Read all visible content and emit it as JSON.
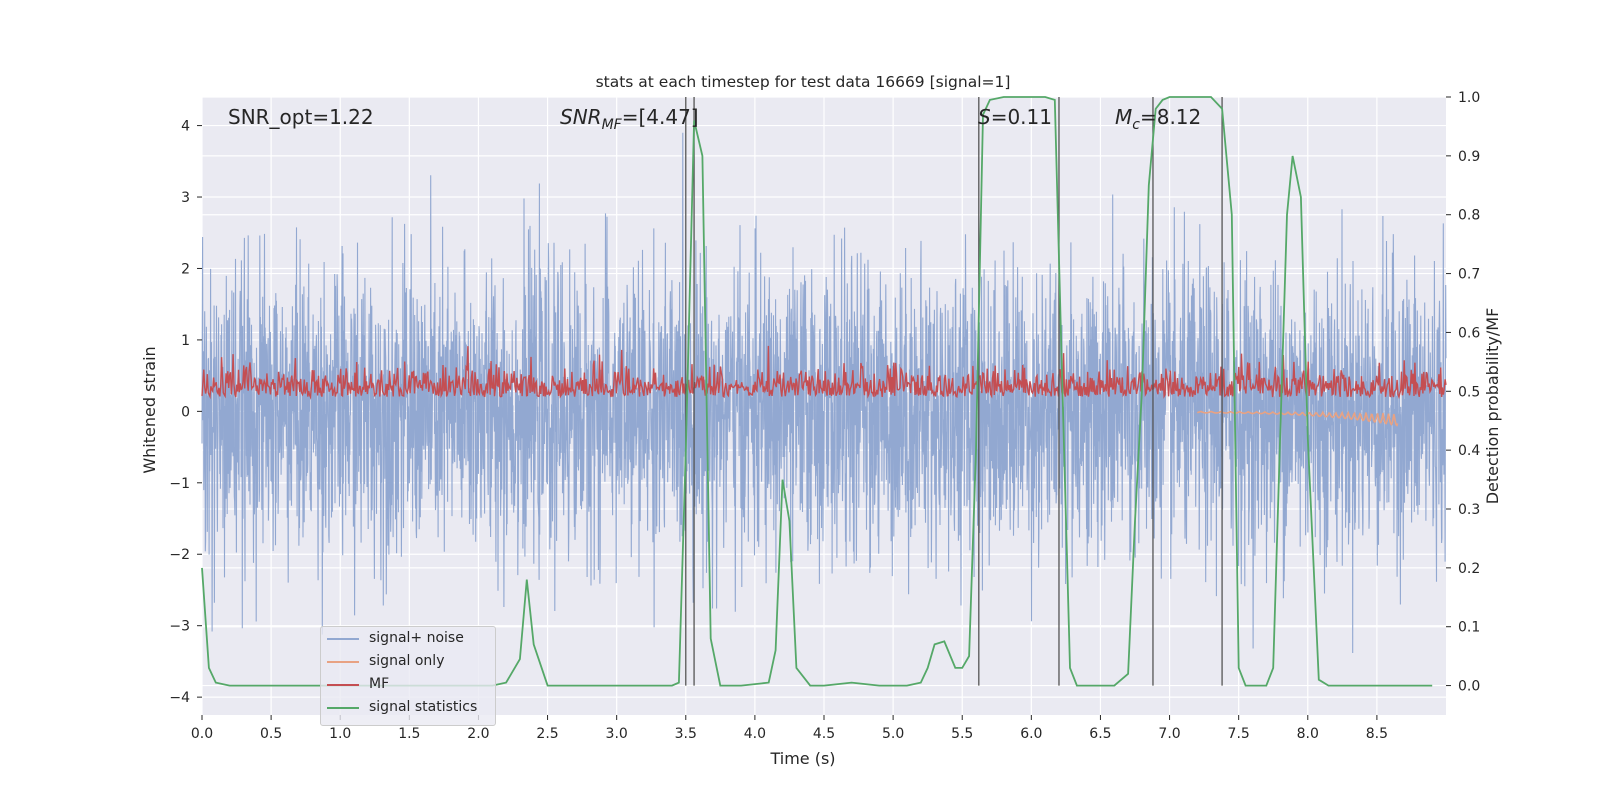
{
  "chart_data": {
    "type": "line",
    "title": "stats at each timestep for test data 16669 [signal=1]",
    "xlabel": "Time (s)",
    "ylabel_left": "Whitened strain",
    "ylabel_right": "Detection probability/MF",
    "xlim": [
      0.0,
      9.0
    ],
    "ylim_left": [
      -4.25,
      4.4
    ],
    "ylim_right": [
      -0.05,
      1.0
    ],
    "xticks": [
      "0.0",
      "0.5",
      "1.0",
      "1.5",
      "2.0",
      "2.5",
      "3.0",
      "3.5",
      "4.0",
      "4.5",
      "5.0",
      "5.5",
      "6.0",
      "6.5",
      "7.0",
      "7.5",
      "8.0",
      "8.5"
    ],
    "yticks_left": [
      "4",
      "3",
      "2",
      "1",
      "0",
      "−1",
      "−2",
      "−3",
      "−4"
    ],
    "yticks_right": [
      "1.0",
      "0.9",
      "0.8",
      "0.7",
      "0.6",
      "0.5",
      "0.4",
      "0.3",
      "0.2",
      "0.1",
      "0.0"
    ],
    "annotations": {
      "snr_opt": "SNR_opt=1.22",
      "snr_mf_main": "SNR",
      "snr_mf_sub": "MF",
      "snr_mf_value": "=[4.47]",
      "s_var": "S",
      "s_value": "=0.11",
      "mc_var": "M",
      "mc_sub": "c",
      "mc_value": "=8.12"
    },
    "vertical_lines_s": [
      3.5,
      3.56,
      5.62,
      6.2,
      6.88,
      7.38
    ],
    "series": [
      {
        "name": "signal+ noise",
        "color": "#92a8d1",
        "kind": "noise",
        "amplitude_rms": 1.0
      },
      {
        "name": "signal only",
        "color": "#e8a283",
        "kind": "chirp",
        "t_start": 7.2,
        "t_end": 8.65
      },
      {
        "name": "MF",
        "color": "#c44e52",
        "kind": "matched-filter",
        "mean_strain": 0.28
      },
      {
        "name": "signal statistics",
        "color": "#55a868",
        "kind": "probability",
        "t": [
          0.0,
          0.05,
          0.1,
          0.2,
          0.5,
          1.0,
          1.5,
          2.0,
          2.1,
          2.2,
          2.3,
          2.35,
          2.4,
          2.5,
          3.0,
          3.4,
          3.45,
          3.5,
          3.56,
          3.62,
          3.68,
          3.75,
          3.9,
          4.1,
          4.15,
          4.2,
          4.25,
          4.3,
          4.4,
          4.5,
          4.7,
          4.9,
          5.1,
          5.2,
          5.25,
          5.3,
          5.37,
          5.45,
          5.5,
          5.55,
          5.6,
          5.65,
          5.7,
          5.8,
          6.1,
          6.17,
          6.22,
          6.28,
          6.33,
          6.4,
          6.6,
          6.7,
          6.75,
          6.8,
          6.85,
          6.9,
          6.95,
          7.0,
          7.3,
          7.38,
          7.45,
          7.5,
          7.55,
          7.7,
          7.75,
          7.8,
          7.85,
          7.89,
          7.95,
          8.0,
          8.08,
          8.15,
          8.2,
          8.5,
          8.9
        ],
        "p": [
          0.2,
          0.03,
          0.005,
          0.0,
          0.0,
          0.0,
          0.0,
          0.0,
          0.0,
          0.005,
          0.045,
          0.18,
          0.07,
          0.0,
          0.0,
          0.0,
          0.005,
          0.4,
          0.96,
          0.9,
          0.08,
          0.0,
          0.0,
          0.005,
          0.06,
          0.35,
          0.28,
          0.03,
          0.0,
          0.0,
          0.005,
          0.0,
          0.0,
          0.005,
          0.03,
          0.07,
          0.075,
          0.03,
          0.03,
          0.05,
          0.4,
          0.97,
          0.995,
          1.0,
          1.0,
          0.995,
          0.55,
          0.03,
          0.0,
          0.0,
          0.0,
          0.02,
          0.28,
          0.5,
          0.85,
          0.98,
          0.995,
          1.0,
          1.0,
          0.98,
          0.8,
          0.03,
          0.0,
          0.0,
          0.03,
          0.42,
          0.8,
          0.9,
          0.83,
          0.42,
          0.01,
          0.0,
          0.0,
          0.0,
          0.0
        ]
      }
    ]
  }
}
